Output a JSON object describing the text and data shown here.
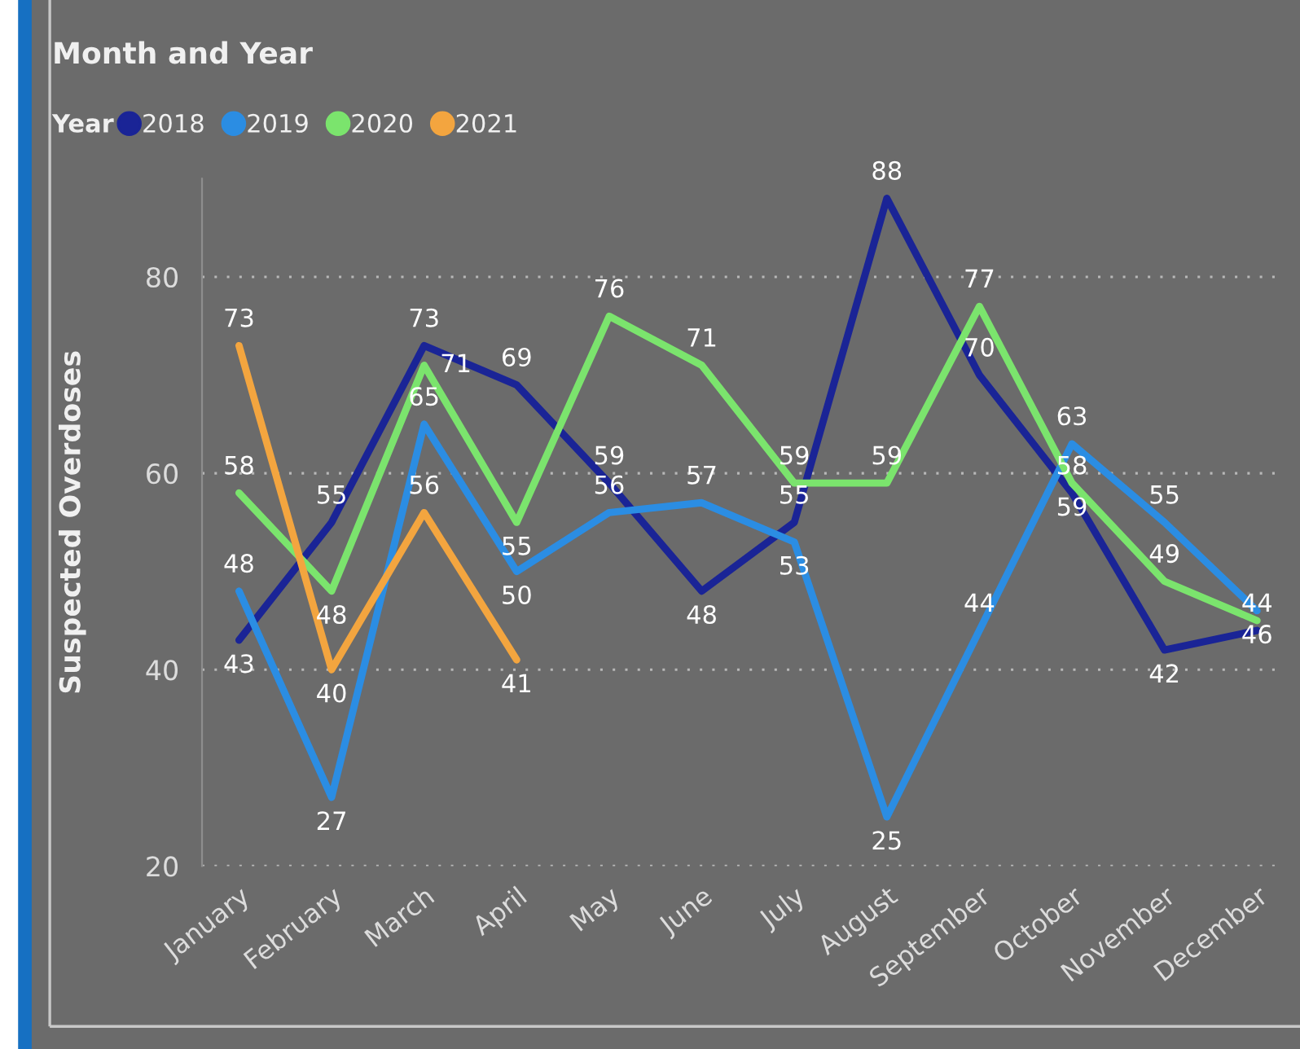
{
  "chart_data": {
    "type": "line",
    "title": "Month and Year",
    "ylabel": "Suspected Overdoses",
    "legend_title": "Year",
    "legend": "top left",
    "grid": "y",
    "categories": [
      "January",
      "February",
      "March",
      "April",
      "May",
      "June",
      "July",
      "August",
      "September",
      "October",
      "November",
      "December"
    ],
    "ylim": [
      20,
      90
    ],
    "yticks": [
      20,
      40,
      60,
      80
    ],
    "series": [
      {
        "name": "2018",
        "color": "#1a2496",
        "values": [
          43,
          55,
          73,
          69,
          59,
          48,
          55,
          88,
          70,
          58,
          42,
          44
        ],
        "value_labels": [
          "43",
          "55",
          "73",
          "69",
          "59",
          "48",
          "55",
          "88",
          "70",
          "58",
          "42",
          "44"
        ]
      },
      {
        "name": "2019",
        "color": "#2b8de3",
        "values": [
          48,
          27,
          65,
          50,
          56,
          57,
          53,
          25,
          44,
          63,
          55,
          46
        ],
        "value_labels": [
          "48",
          "27",
          "65",
          "50",
          "56",
          "57",
          "53",
          "25",
          "44",
          "63",
          "55",
          "46"
        ]
      },
      {
        "name": "2020",
        "color": "#7be46d",
        "values": [
          58,
          48,
          71,
          55,
          76,
          71,
          59,
          59,
          77,
          59,
          49,
          45
        ],
        "value_labels": [
          "58",
          "48",
          "71",
          "55",
          "76",
          "71",
          "59",
          "59",
          "77",
          "59",
          "49",
          null
        ]
      },
      {
        "name": "2021",
        "color": "#f3a53f",
        "values": [
          73,
          40,
          56,
          41,
          null,
          null,
          null,
          null,
          null,
          null,
          null,
          null
        ],
        "value_labels": [
          "73",
          "40",
          "56",
          "41",
          null,
          null,
          null,
          null,
          null,
          null,
          null,
          null
        ]
      }
    ]
  }
}
